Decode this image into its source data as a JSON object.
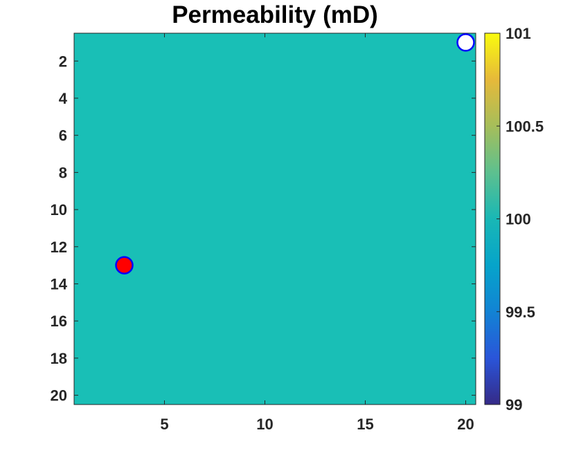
{
  "chart_data": {
    "type": "heatmap",
    "title": "Permeability (mD)",
    "xlabel": "",
    "ylabel": "",
    "grid": false,
    "xlim": [
      0.5,
      20.5
    ],
    "ylim": [
      20.5,
      0.5
    ],
    "y_reversed": true,
    "x_ticks": [
      5,
      10,
      15,
      20
    ],
    "y_ticks": [
      2,
      4,
      6,
      8,
      10,
      12,
      14,
      16,
      18,
      20
    ],
    "field": {
      "value": 100,
      "rows": 20,
      "cols": 20,
      "color": "#19bfb6"
    },
    "colorbar": {
      "min": 99,
      "max": 101,
      "ticks": [
        99,
        99.5,
        100,
        100.5,
        101
      ],
      "tick_labels": [
        "99",
        "99.5",
        "100",
        "100.5",
        "101"
      ],
      "colormap": "parula"
    },
    "markers": [
      {
        "x": 3,
        "y": 13,
        "fill": "#ff0000",
        "edge": "#0000ff"
      },
      {
        "x": 20,
        "y": 1,
        "fill": "#ffffff",
        "edge": "#0000ff"
      }
    ]
  }
}
